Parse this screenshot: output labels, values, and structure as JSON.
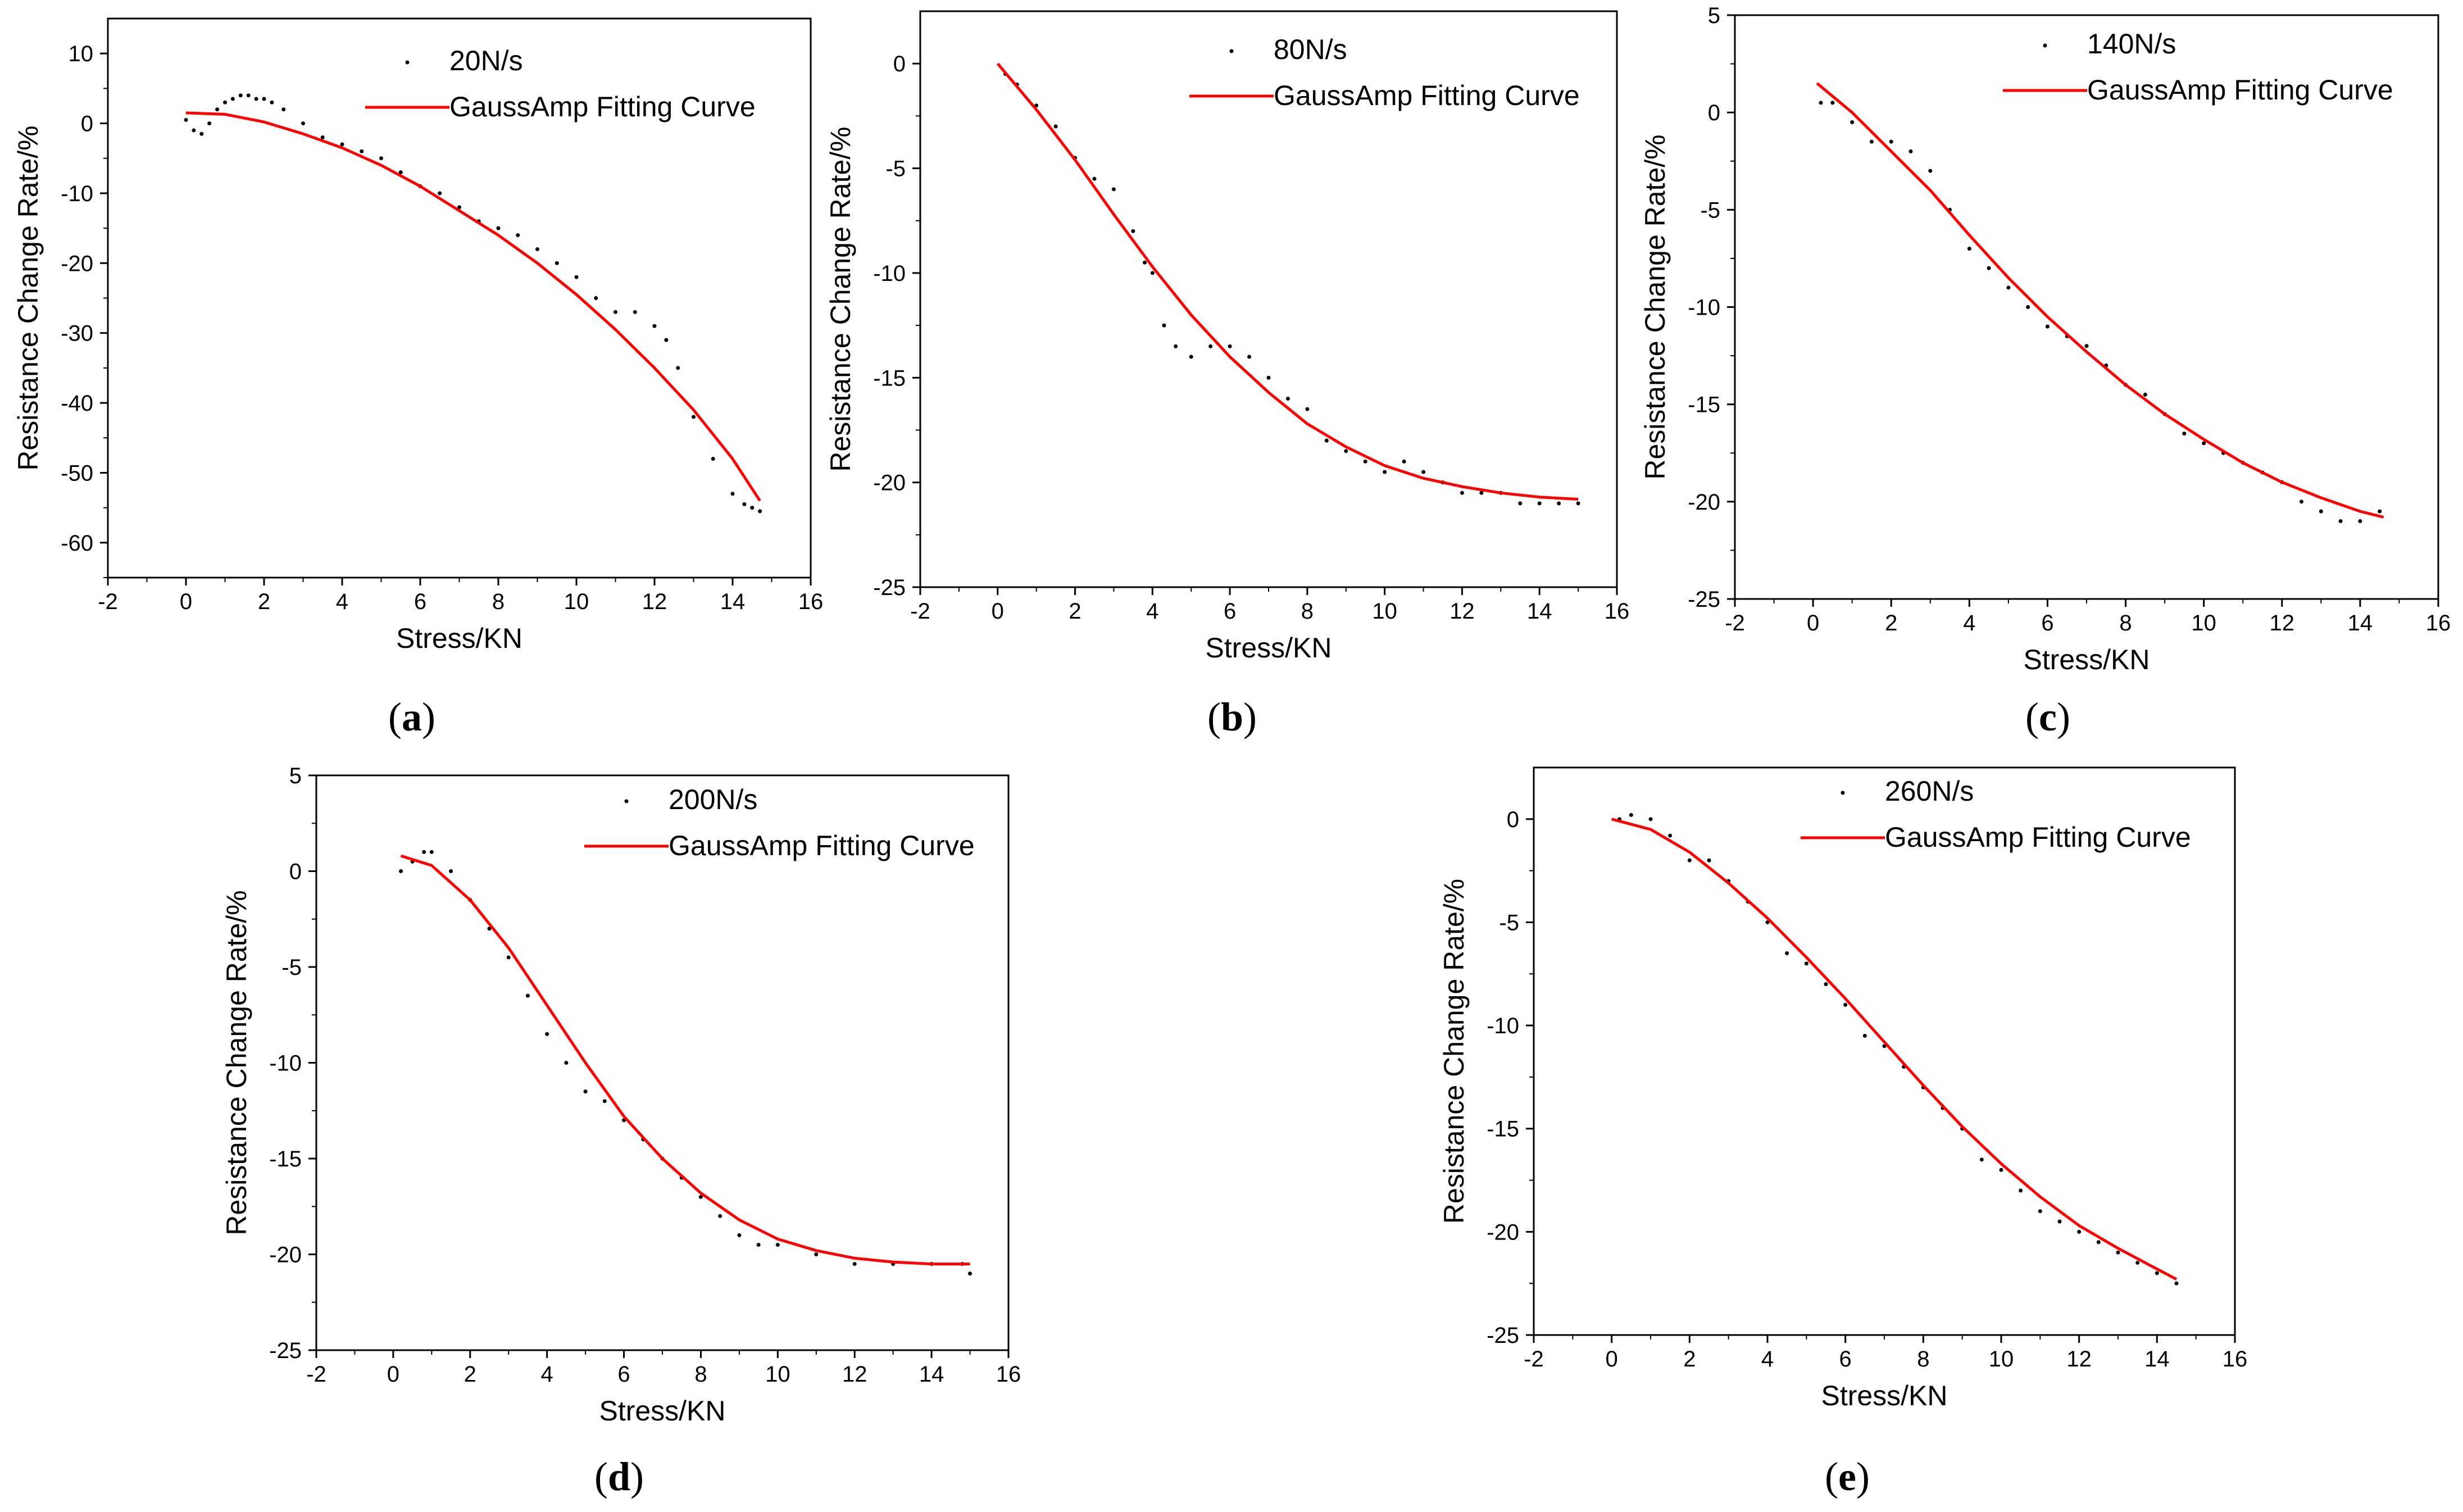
{
  "chart_data": [
    {
      "panel": "a",
      "type": "scatter",
      "xlabel": "Stress/KN",
      "ylabel": "Resistance Change Rate/%",
      "xlim": [
        -2,
        16
      ],
      "ylim": [
        -65,
        15
      ],
      "xticks": [
        -2,
        0,
        2,
        4,
        6,
        8,
        10,
        12,
        14,
        16
      ],
      "yticks": [
        10,
        0,
        -10,
        -20,
        -30,
        -40,
        -50,
        -60
      ],
      "legend": [
        "20N/s",
        "GaussAmp Fitting Curve"
      ],
      "series": [
        {
          "name": "20N/s",
          "kind": "scatter",
          "color": "#000000",
          "x": [
            0,
            0.2,
            0.4,
            0.6,
            0.8,
            1.0,
            1.2,
            1.4,
            1.6,
            1.8,
            2.0,
            2.2,
            2.5,
            3.0,
            3.5,
            4.0,
            4.5,
            5.0,
            5.5,
            6.0,
            6.5,
            7.0,
            7.5,
            8.0,
            8.5,
            9.0,
            9.5,
            10.0,
            10.5,
            11.0,
            11.5,
            12.0,
            12.3,
            12.6,
            13.0,
            13.5,
            14.0,
            14.3,
            14.5,
            14.7
          ],
          "y": [
            0.5,
            -1,
            -1.5,
            0,
            2,
            3,
            3.5,
            4,
            4,
            3.5,
            3.5,
            3,
            2,
            0,
            -2,
            -3,
            -4,
            -5,
            -7,
            -9,
            -10,
            -12,
            -14,
            -15,
            -16,
            -18,
            -20,
            -22,
            -25,
            -27,
            -27,
            -29,
            -31,
            -35,
            -42,
            -48,
            -53,
            -54.5,
            -55,
            -55.5
          ]
        },
        {
          "name": "GaussAmp Fitting Curve",
          "kind": "line",
          "color": "#ff0000",
          "x": [
            0,
            1,
            2,
            3,
            4,
            5,
            6,
            7,
            8,
            9,
            10,
            11,
            12,
            13,
            14,
            14.7
          ],
          "y": [
            1.5,
            1.3,
            0.2,
            -1.5,
            -3.5,
            -6,
            -9,
            -12.5,
            -16,
            -20,
            -24.5,
            -29.5,
            -35,
            -41,
            -48,
            -54
          ]
        }
      ]
    },
    {
      "panel": "b",
      "type": "scatter",
      "xlabel": "Stress/KN",
      "ylabel": "Resistance Change Rate/%",
      "xlim": [
        -2,
        16
      ],
      "ylim": [
        -25,
        2.5
      ],
      "xticks": [
        -2,
        0,
        2,
        4,
        6,
        8,
        10,
        12,
        14,
        16
      ],
      "yticks": [
        0,
        -5,
        -10,
        -15,
        -20,
        -25
      ],
      "legend": [
        "80N/s",
        "GaussAmp Fitting Curve"
      ],
      "series": [
        {
          "name": "80N/s",
          "kind": "scatter",
          "color": "#000000",
          "x": [
            0.2,
            0.5,
            1.0,
            1.5,
            2.0,
            2.5,
            3.0,
            3.5,
            3.8,
            4.0,
            4.3,
            4.6,
            5.0,
            5.5,
            6.0,
            6.5,
            7.0,
            7.5,
            8.0,
            8.5,
            9.0,
            9.5,
            10.0,
            10.5,
            11.0,
            11.5,
            12.0,
            12.5,
            13.0,
            13.5,
            14.0,
            14.5,
            15.0
          ],
          "y": [
            -0.5,
            -1,
            -2,
            -3,
            -4.5,
            -5.5,
            -6,
            -8,
            -9.5,
            -10,
            -12.5,
            -13.5,
            -14,
            -13.5,
            -13.5,
            -14,
            -15,
            -16,
            -16.5,
            -18,
            -18.5,
            -19,
            -19.5,
            -19,
            -19.5,
            -20,
            -20.5,
            -20.5,
            -20.5,
            -21,
            -21,
            -21,
            -21
          ]
        },
        {
          "name": "GaussAmp Fitting Curve",
          "kind": "line",
          "color": "#ff0000",
          "x": [
            0,
            1,
            2,
            3,
            4,
            5,
            6,
            7,
            8,
            9,
            10,
            11,
            12,
            13,
            14,
            15
          ],
          "y": [
            0,
            -2.2,
            -4.6,
            -7.2,
            -9.7,
            -12,
            -14,
            -15.7,
            -17.2,
            -18.3,
            -19.2,
            -19.8,
            -20.2,
            -20.5,
            -20.7,
            -20.8
          ]
        }
      ]
    },
    {
      "panel": "c",
      "type": "scatter",
      "xlabel": "Stress/KN",
      "ylabel": "Resistance Change Rate/%",
      "xlim": [
        -2,
        16
      ],
      "ylim": [
        -25,
        5
      ],
      "xticks": [
        -2,
        0,
        2,
        4,
        6,
        8,
        10,
        12,
        14,
        16
      ],
      "yticks": [
        5,
        0,
        -5,
        -10,
        -15,
        -20,
        -25
      ],
      "legend": [
        "140N/s",
        "GaussAmp Fitting Curve"
      ],
      "series": [
        {
          "name": "140N/s",
          "kind": "scatter",
          "color": "#000000",
          "x": [
            0.2,
            0.5,
            1.0,
            1.5,
            2.0,
            2.5,
            3.0,
            3.5,
            4.0,
            4.5,
            5.0,
            5.5,
            6.0,
            6.5,
            7.0,
            7.5,
            8.0,
            8.5,
            9.0,
            9.5,
            10.0,
            10.5,
            11.0,
            11.5,
            12.0,
            12.5,
            13.0,
            13.5,
            14.0,
            14.5
          ],
          "y": [
            0.5,
            0.5,
            -0.5,
            -1.5,
            -1.5,
            -2,
            -3,
            -5,
            -7,
            -8,
            -9,
            -10,
            -11,
            -11.5,
            -12,
            -13,
            -14,
            -14.5,
            -15.5,
            -16.5,
            -17,
            -17.5,
            -18,
            -18.5,
            -19,
            -20,
            -20.5,
            -21,
            -21,
            -20.5
          ]
        },
        {
          "name": "GaussAmp Fitting Curve",
          "kind": "line",
          "color": "#ff0000",
          "x": [
            0.1,
            1,
            2,
            3,
            4,
            5,
            6,
            7,
            8,
            9,
            10,
            11,
            12,
            13,
            14,
            14.6
          ],
          "y": [
            1.5,
            0,
            -2,
            -4,
            -6.3,
            -8.5,
            -10.5,
            -12.3,
            -14,
            -15.5,
            -16.8,
            -18,
            -19,
            -19.8,
            -20.5,
            -20.8
          ]
        }
      ]
    },
    {
      "panel": "d",
      "type": "scatter",
      "xlabel": "Stress/KN",
      "ylabel": "Resistance Change Rate/%",
      "xlim": [
        -2,
        16
      ],
      "ylim": [
        -25,
        5
      ],
      "xticks": [
        -2,
        0,
        2,
        4,
        6,
        8,
        10,
        12,
        14,
        16
      ],
      "yticks": [
        5,
        0,
        -5,
        -10,
        -15,
        -20,
        -25
      ],
      "legend": [
        "200N/s",
        "GaussAmp Fitting Curve"
      ],
      "series": [
        {
          "name": "200N/s",
          "kind": "scatter",
          "color": "#000000",
          "x": [
            0.2,
            0.5,
            0.8,
            1.0,
            1.5,
            2.0,
            2.5,
            3.0,
            3.5,
            4.0,
            4.5,
            5.0,
            5.5,
            6.0,
            6.5,
            7.0,
            7.5,
            8.0,
            8.5,
            9.0,
            9.5,
            10.0,
            11.0,
            12.0,
            13.0,
            14.0,
            14.8,
            15.0
          ],
          "y": [
            0,
            0.5,
            1,
            1,
            0,
            -1.5,
            -3,
            -4.5,
            -6.5,
            -8.5,
            -10,
            -11.5,
            -12,
            -13,
            -14,
            -15,
            -16,
            -17,
            -18,
            -19,
            -19.5,
            -19.5,
            -20,
            -20.5,
            -20.5,
            -20.5,
            -20.5,
            -21
          ]
        },
        {
          "name": "GaussAmp Fitting Curve",
          "kind": "line",
          "color": "#ff0000",
          "x": [
            0.2,
            1,
            2,
            3,
            4,
            5,
            6,
            7,
            8,
            9,
            10,
            11,
            12,
            13,
            14,
            15
          ],
          "y": [
            0.8,
            0.3,
            -1.5,
            -4,
            -7,
            -10,
            -12.8,
            -15,
            -16.8,
            -18.2,
            -19.2,
            -19.8,
            -20.2,
            -20.4,
            -20.5,
            -20.5
          ]
        }
      ]
    },
    {
      "panel": "e",
      "type": "scatter",
      "xlabel": "Stress/KN",
      "ylabel": "Resistance Change Rate/%",
      "xlim": [
        -2,
        16
      ],
      "ylim": [
        -25,
        2.5
      ],
      "xticks": [
        -2,
        0,
        2,
        4,
        6,
        8,
        10,
        12,
        14,
        16
      ],
      "yticks": [
        0,
        -5,
        -10,
        -15,
        -20,
        -25
      ],
      "legend": [
        "260N/s",
        "GaussAmp Fitting Curve"
      ],
      "series": [
        {
          "name": "260N/s",
          "kind": "scatter",
          "color": "#000000",
          "x": [
            0.2,
            0.5,
            1.0,
            1.5,
            2.0,
            2.5,
            3.0,
            3.5,
            4.0,
            4.5,
            5.0,
            5.5,
            6.0,
            6.5,
            7.0,
            7.5,
            8.0,
            8.5,
            9.0,
            9.5,
            10.0,
            10.5,
            11.0,
            11.5,
            12.0,
            12.5,
            13.0,
            13.5,
            14.0,
            14.5
          ],
          "y": [
            0,
            0.2,
            0,
            -0.8,
            -2,
            -2,
            -3,
            -4,
            -5,
            -6.5,
            -7,
            -8,
            -9,
            -10.5,
            -11,
            -12,
            -13,
            -14,
            -15,
            -16.5,
            -17,
            -18,
            -19,
            -19.5,
            -20,
            -20.5,
            -21,
            -21.5,
            -22,
            -22.5
          ]
        },
        {
          "name": "GaussAmp Fitting Curve",
          "kind": "line",
          "color": "#ff0000",
          "x": [
            0,
            1,
            2,
            3,
            4,
            5,
            6,
            7,
            8,
            9,
            10,
            11,
            12,
            13,
            14,
            14.5
          ],
          "y": [
            0,
            -0.5,
            -1.6,
            -3.1,
            -4.8,
            -6.7,
            -8.7,
            -10.8,
            -12.9,
            -14.9,
            -16.7,
            -18.3,
            -19.7,
            -20.8,
            -21.8,
            -22.3
          ]
        }
      ]
    }
  ],
  "panel_labels": {
    "a": "a",
    "b": "b",
    "c": "c",
    "d": "d",
    "e": "e",
    "open": "(",
    "close": ")"
  },
  "colors": {
    "fit": "#ff0000",
    "points": "#000000",
    "axis": "#000000",
    "background": "#ffffff"
  }
}
